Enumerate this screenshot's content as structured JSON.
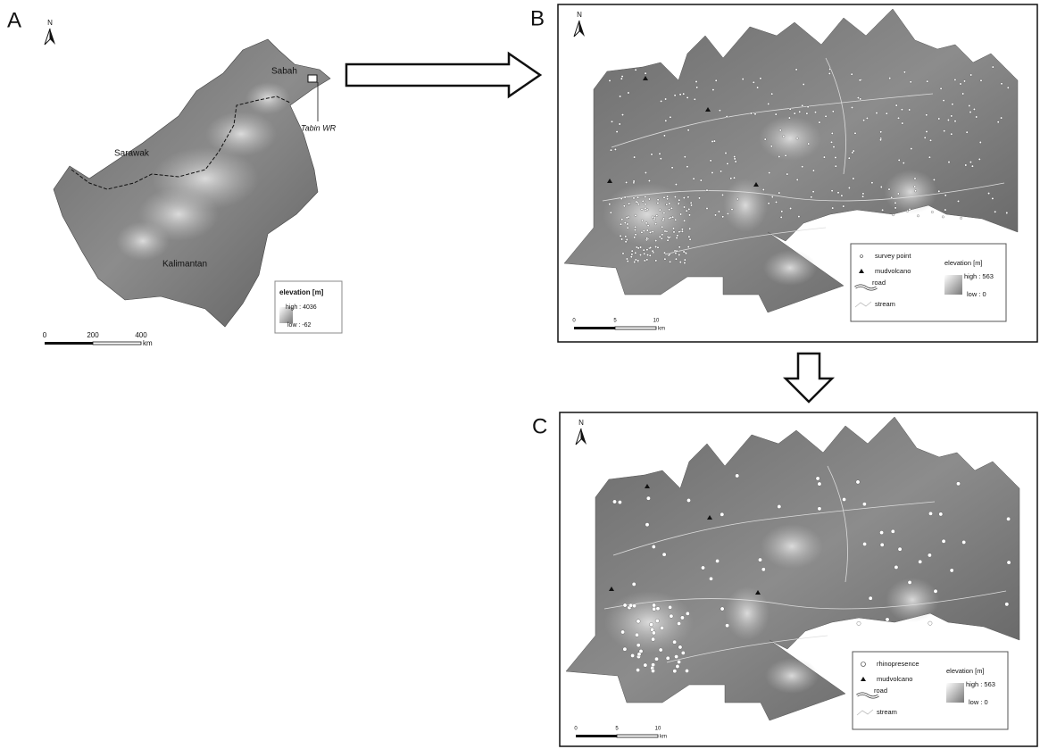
{
  "panels": [
    {
      "label": "A",
      "north": "N",
      "places": [
        "Sabah",
        "Tabin WR",
        "Sarawak",
        "Kalimantan"
      ],
      "legend": {
        "title": "elevation [m]",
        "high": "high : 4036",
        "low": "low : -62"
      },
      "scale": {
        "ticks": [
          "0",
          "200",
          "400"
        ],
        "unit": "km"
      }
    },
    {
      "label": "B",
      "north": "N",
      "legend": {
        "items": [
          "survey point",
          "mudvolcano",
          "road",
          "stream"
        ],
        "title": "elevation [m]",
        "high": "high : 563",
        "low": "low : 0"
      },
      "scale": {
        "ticks": [
          "0",
          "5",
          "10"
        ],
        "unit": "km"
      }
    },
    {
      "label": "C",
      "north": "N",
      "legend": {
        "items": [
          "rhinopresence",
          "mudvolcano",
          "road",
          "stream"
        ],
        "title": "elevation [m]",
        "high": "high : 563",
        "low": "low : 0"
      },
      "scale": {
        "ticks": [
          "0",
          "5",
          "10"
        ],
        "unit": "km"
      }
    }
  ]
}
